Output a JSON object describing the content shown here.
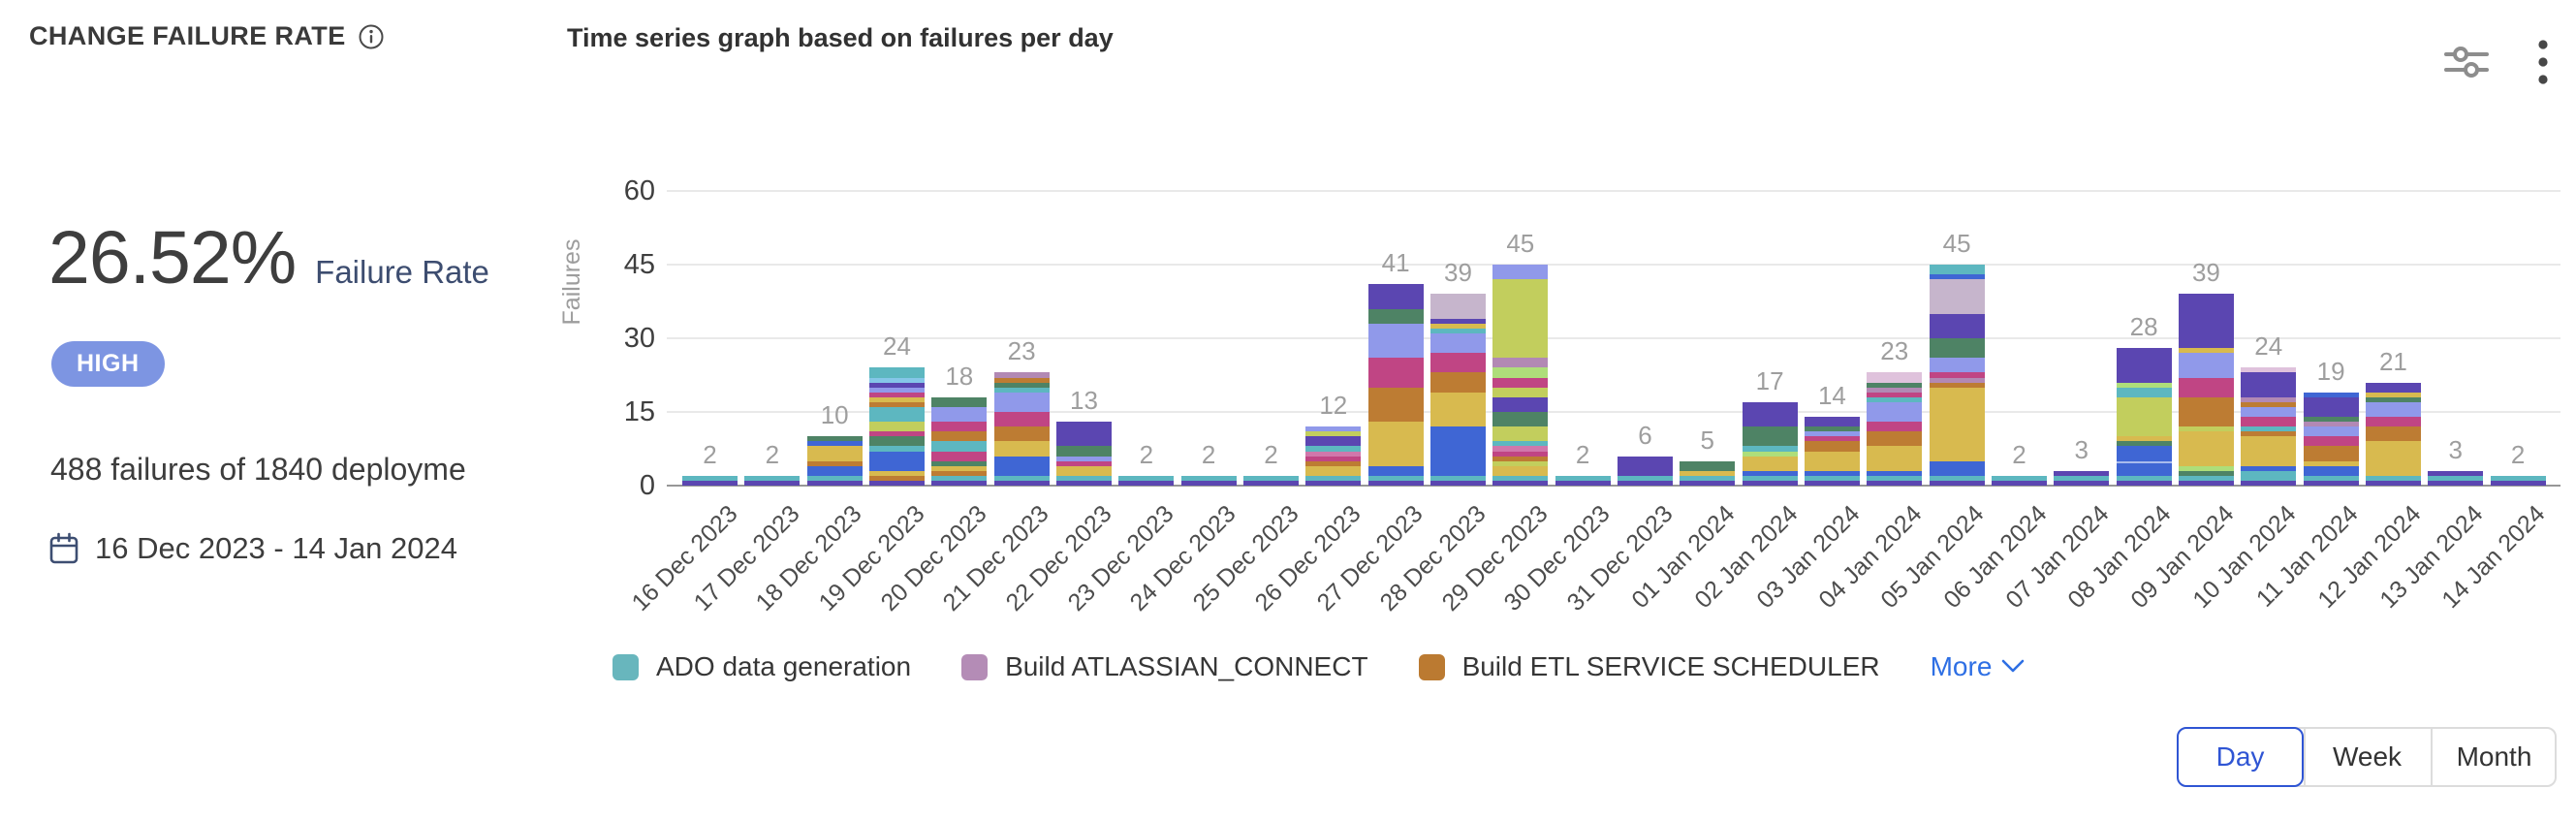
{
  "header": {
    "title": "CHANGE FAILURE RATE",
    "subtitle": "Time series graph based on failures per day"
  },
  "stats": {
    "rate": "26.52%",
    "rate_label": "Failure Rate",
    "severity": "HIGH",
    "severity_color": "#7d95e2",
    "summary": "488 failures of 1840 deployme",
    "date_range": "16 Dec 2023 - 14 Jan 2024"
  },
  "chart_data": {
    "type": "bar",
    "stacked": true,
    "title": "Time series graph based on failures per day",
    "xlabel": "",
    "ylabel": "Failures",
    "ylim": [
      0,
      60
    ],
    "yticks": [
      0,
      15,
      30,
      45,
      60
    ],
    "grid": true,
    "categories": [
      "16 Dec 2023",
      "17 Dec 2023",
      "18 Dec 2023",
      "19 Dec 2023",
      "20 Dec 2023",
      "21 Dec 2023",
      "22 Dec 2023",
      "23 Dec 2023",
      "24 Dec 2023",
      "25 Dec 2023",
      "26 Dec 2023",
      "27 Dec 2023",
      "28 Dec 2023",
      "29 Dec 2023",
      "30 Dec 2023",
      "31 Dec 2023",
      "01 Jan 2024",
      "02 Jan 2024",
      "03 Jan 2024",
      "04 Jan 2024",
      "05 Jan 2024",
      "06 Jan 2024",
      "07 Jan 2024",
      "08 Jan 2024",
      "09 Jan 2024",
      "10 Jan 2024",
      "11 Jan 2024",
      "12 Jan 2024",
      "13 Jan 2024",
      "14 Jan 2024"
    ],
    "totals": [
      2,
      2,
      10,
      24,
      18,
      23,
      13,
      2,
      2,
      2,
      12,
      41,
      39,
      45,
      2,
      6,
      5,
      17,
      14,
      23,
      45,
      2,
      3,
      28,
      39,
      24,
      19,
      21,
      3,
      2
    ],
    "palette": {
      "p": "#5b46b1",
      "t": "#5db7c0",
      "b": "#3f66d4",
      "y": "#d8ba4f",
      "o": "#bd7c33",
      "m": "#c04584",
      "pw": "#9099ea",
      "g": "#4e8365",
      "li": "#c2ce5d",
      "ll": "#aede7a",
      "mv": "#b289b4",
      "lmv": "#c6b5cc",
      "pk": "#d077ab",
      "lpk": "#dfc2dc",
      "lb": "#85c6e8"
    },
    "bars": [
      [
        [
          "p",
          1
        ],
        [
          "t",
          1
        ]
      ],
      [
        [
          "p",
          1
        ],
        [
          "t",
          1
        ]
      ],
      [
        [
          "p",
          1
        ],
        [
          "t",
          1
        ],
        [
          "b",
          2
        ],
        [
          "o",
          1
        ],
        [
          "y",
          3
        ],
        [
          "b",
          1
        ],
        [
          "g",
          1
        ]
      ],
      [
        [
          "p",
          1
        ],
        [
          "o",
          1
        ],
        [
          "y",
          1
        ],
        [
          "b",
          4
        ],
        [
          "t",
          1
        ],
        [
          "g",
          2
        ],
        [
          "m",
          1
        ],
        [
          "li",
          2
        ],
        [
          "t",
          3
        ],
        [
          "o",
          1
        ],
        [
          "y",
          1
        ],
        [
          "m",
          1
        ],
        [
          "pw",
          1
        ],
        [
          "p",
          1
        ],
        [
          "lb",
          1
        ],
        [
          "t",
          2
        ]
      ],
      [
        [
          "p",
          1
        ],
        [
          "t",
          1
        ],
        [
          "o",
          1
        ],
        [
          "y",
          1
        ],
        [
          "g",
          1
        ],
        [
          "m",
          2
        ],
        [
          "t",
          2
        ],
        [
          "o",
          2
        ],
        [
          "m",
          2
        ],
        [
          "pw",
          3
        ],
        [
          "g",
          2
        ]
      ],
      [
        [
          "p",
          1
        ],
        [
          "t",
          1
        ],
        [
          "b",
          4
        ],
        [
          "y",
          3
        ],
        [
          "o",
          3
        ],
        [
          "m",
          3
        ],
        [
          "pw",
          4
        ],
        [
          "t",
          1
        ],
        [
          "g",
          1
        ],
        [
          "o",
          1
        ],
        [
          "mv",
          1
        ]
      ],
      [
        [
          "p",
          1
        ],
        [
          "t",
          1
        ],
        [
          "y",
          2
        ],
        [
          "m",
          1
        ],
        [
          "pw",
          1
        ],
        [
          "g",
          2
        ],
        [
          "p",
          5
        ]
      ],
      [
        [
          "p",
          1
        ],
        [
          "t",
          1
        ]
      ],
      [
        [
          "p",
          1
        ],
        [
          "t",
          1
        ]
      ],
      [
        [
          "p",
          1
        ],
        [
          "t",
          1
        ]
      ],
      [
        [
          "p",
          1
        ],
        [
          "t",
          1
        ],
        [
          "y",
          2
        ],
        [
          "o",
          1
        ],
        [
          "m",
          1
        ],
        [
          "pk",
          1
        ],
        [
          "t",
          1
        ],
        [
          "p",
          2
        ],
        [
          "li",
          1
        ],
        [
          "pw",
          1
        ]
      ],
      [
        [
          "p",
          1
        ],
        [
          "t",
          1
        ],
        [
          "b",
          2
        ],
        [
          "y",
          9
        ],
        [
          "o",
          7
        ],
        [
          "m",
          6
        ],
        [
          "pw",
          7
        ],
        [
          "g",
          3
        ],
        [
          "p",
          5
        ]
      ],
      [
        [
          "p",
          1
        ],
        [
          "t",
          1
        ],
        [
          "b",
          10
        ],
        [
          "y",
          7
        ],
        [
          "o",
          4
        ],
        [
          "m",
          4
        ],
        [
          "pw",
          4
        ],
        [
          "t",
          1
        ],
        [
          "y",
          1
        ],
        [
          "p",
          1
        ],
        [
          "lmv",
          5
        ]
      ],
      [
        [
          "p",
          1
        ],
        [
          "t",
          1
        ],
        [
          "y",
          2
        ],
        [
          "li",
          1
        ],
        [
          "o",
          1
        ],
        [
          "m",
          1
        ],
        [
          "pk",
          1
        ],
        [
          "t",
          1
        ],
        [
          "li",
          3
        ],
        [
          "g",
          3
        ],
        [
          "p",
          3
        ],
        [
          "li",
          2
        ],
        [
          "m",
          2
        ],
        [
          "ll",
          2
        ],
        [
          "mv",
          2
        ],
        [
          "li",
          16
        ],
        [
          "pw",
          3
        ]
      ],
      [
        [
          "p",
          1
        ],
        [
          "t",
          1
        ]
      ],
      [
        [
          "p",
          1
        ],
        [
          "t",
          1
        ],
        [
          "p",
          4
        ]
      ],
      [
        [
          "p",
          1
        ],
        [
          "t",
          1
        ],
        [
          "y",
          1
        ],
        [
          "g",
          2
        ]
      ],
      [
        [
          "p",
          1
        ],
        [
          "t",
          1
        ],
        [
          "b",
          1
        ],
        [
          "y",
          3
        ],
        [
          "ll",
          1
        ],
        [
          "t",
          1
        ],
        [
          "g",
          4
        ],
        [
          "p",
          5
        ]
      ],
      [
        [
          "p",
          1
        ],
        [
          "t",
          1
        ],
        [
          "b",
          1
        ],
        [
          "y",
          4
        ],
        [
          "o",
          2
        ],
        [
          "m",
          1
        ],
        [
          "pw",
          1
        ],
        [
          "g",
          1
        ],
        [
          "p",
          2
        ]
      ],
      [
        [
          "p",
          1
        ],
        [
          "t",
          1
        ],
        [
          "b",
          1
        ],
        [
          "y",
          5
        ],
        [
          "o",
          3
        ],
        [
          "m",
          2
        ],
        [
          "pw",
          4
        ],
        [
          "t",
          1
        ],
        [
          "m",
          1
        ],
        [
          "mv",
          1
        ],
        [
          "g",
          1
        ],
        [
          "lpk",
          2
        ]
      ],
      [
        [
          "p",
          1
        ],
        [
          "t",
          1
        ],
        [
          "b",
          3
        ],
        [
          "y",
          15
        ],
        [
          "o",
          1
        ],
        [
          "mv",
          1
        ],
        [
          "m",
          1
        ],
        [
          "pw",
          3
        ],
        [
          "g",
          4
        ],
        [
          "p",
          5
        ],
        [
          "lmv",
          7
        ],
        [
          "b",
          1
        ],
        [
          "t",
          2
        ]
      ],
      [
        [
          "p",
          1
        ],
        [
          "t",
          1
        ]
      ],
      [
        [
          "p",
          1
        ],
        [
          "t",
          1
        ],
        [
          "p",
          1
        ]
      ],
      [
        [
          "p",
          1
        ],
        [
          "t",
          1
        ],
        [
          "b",
          3
        ],
        [
          "b",
          3
        ],
        [
          "g",
          1
        ],
        [
          "y",
          1
        ],
        [
          "li",
          8
        ],
        [
          "t",
          2
        ],
        [
          "ll",
          1
        ],
        [
          "p",
          7
        ]
      ],
      [
        [
          "p",
          1
        ],
        [
          "t",
          1
        ],
        [
          "g",
          1
        ],
        [
          "ll",
          1
        ],
        [
          "y",
          7
        ],
        [
          "li",
          1
        ],
        [
          "o",
          6
        ],
        [
          "m",
          4
        ],
        [
          "pw",
          5
        ],
        [
          "y",
          1
        ],
        [
          "p",
          11
        ]
      ],
      [
        [
          "p",
          1
        ],
        [
          "t",
          2
        ],
        [
          "b",
          1
        ],
        [
          "y",
          6
        ],
        [
          "o",
          1
        ],
        [
          "t",
          1
        ],
        [
          "m",
          2
        ],
        [
          "pw",
          2
        ],
        [
          "o",
          1
        ],
        [
          "mv",
          1
        ],
        [
          "p",
          5
        ],
        [
          "lpk",
          1
        ]
      ],
      [
        [
          "p",
          1
        ],
        [
          "t",
          1
        ],
        [
          "b",
          2
        ],
        [
          "y",
          1
        ],
        [
          "o",
          3
        ],
        [
          "m",
          2
        ],
        [
          "pw",
          2
        ],
        [
          "mv",
          1
        ],
        [
          "g",
          1
        ],
        [
          "p",
          4
        ],
        [
          "b",
          1
        ]
      ],
      [
        [
          "p",
          1
        ],
        [
          "t",
          1
        ],
        [
          "y",
          7
        ],
        [
          "o",
          3
        ],
        [
          "m",
          2
        ],
        [
          "pw",
          3
        ],
        [
          "g",
          1
        ],
        [
          "y",
          1
        ],
        [
          "p",
          2
        ]
      ],
      [
        [
          "p",
          1
        ],
        [
          "t",
          1
        ],
        [
          "p",
          1
        ]
      ],
      [
        [
          "p",
          1
        ],
        [
          "t",
          1
        ]
      ]
    ]
  },
  "legend": {
    "items": [
      {
        "label": "ADO data generation",
        "color": "#68b6bd"
      },
      {
        "label": "Build ATLASSIAN_CONNECT",
        "color": "#b48cb6"
      },
      {
        "label": "Build ETL SERVICE SCHEDULER",
        "color": "#bb7a31"
      }
    ],
    "more_label": "More"
  },
  "toolbar": {
    "options": [
      "Day",
      "Week",
      "Month"
    ],
    "selected": "Day"
  },
  "icons": {
    "info": "info-icon",
    "settings": "chart-settings-icon",
    "menu": "kebab-menu-icon",
    "calendar": "calendar-icon"
  }
}
